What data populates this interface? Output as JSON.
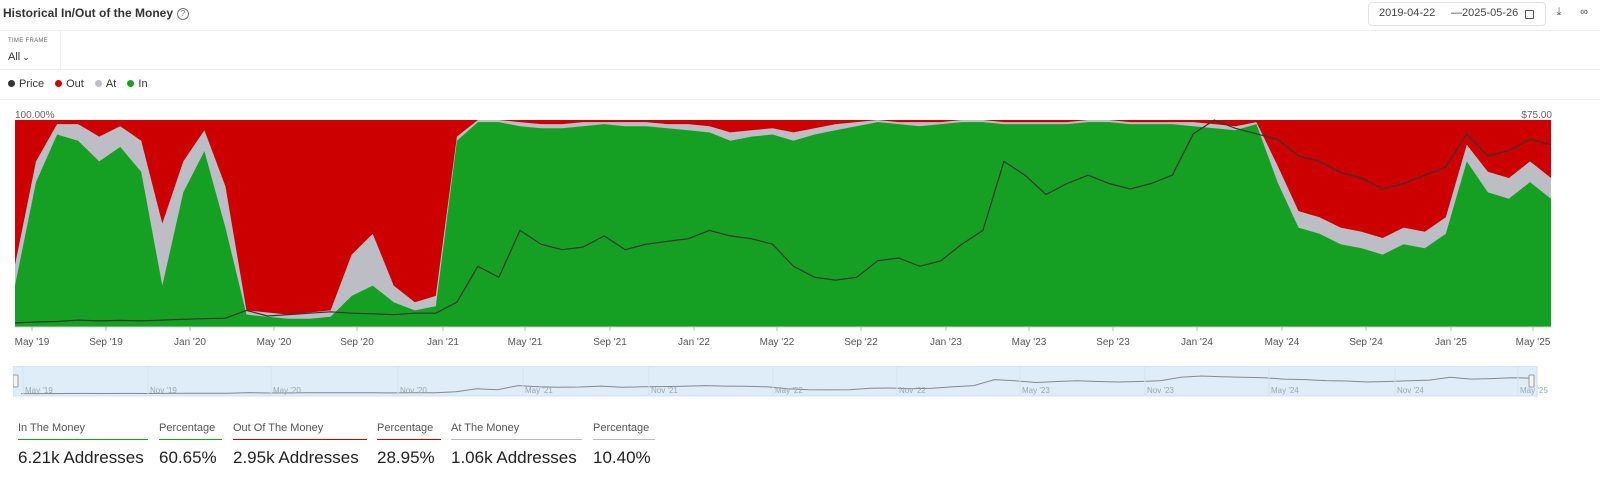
{
  "header": {
    "title": "Historical In/Out of the Money",
    "help_icon": "question-circle-icon",
    "date_from": "2019-04-22",
    "date_sep": "—",
    "date_to": "2025-05-26",
    "icons": [
      "calendar-icon",
      "download-icon",
      "link-icon"
    ]
  },
  "timeframe": {
    "label": "TIME FRAME",
    "value": "All"
  },
  "legend": [
    {
      "label": "Price",
      "color": "#333333"
    },
    {
      "label": "Out",
      "color": "#cc0000"
    },
    {
      "label": "At",
      "color": "#bdbdc5"
    },
    {
      "label": "In",
      "color": "#16a023"
    }
  ],
  "colors": {
    "in": "#16a023",
    "out": "#cc0000",
    "at": "#bdbdc5",
    "price": "#333333",
    "navigator_bg": "#dfedf9"
  },
  "chart_data": {
    "type": "area",
    "stacked_percent": true,
    "series": [
      {
        "name": "In",
        "x": [
          "2019-04",
          "2019-05",
          "2019-06",
          "2019-07",
          "2019-08",
          "2019-09",
          "2019-10",
          "2019-11",
          "2019-12",
          "2020-01",
          "2020-02",
          "2020-03",
          "2020-04",
          "2020-05",
          "2020-06",
          "2020-07",
          "2020-08",
          "2020-09",
          "2020-10",
          "2020-11",
          "2020-12",
          "2021-01",
          "2021-02",
          "2021-03",
          "2021-04",
          "2021-05",
          "2021-06",
          "2021-07",
          "2021-08",
          "2021-09",
          "2021-10",
          "2021-11",
          "2021-12",
          "2022-01",
          "2022-02",
          "2022-03",
          "2022-04",
          "2022-05",
          "2022-06",
          "2022-07",
          "2022-08",
          "2022-09",
          "2022-10",
          "2022-11",
          "2022-12",
          "2023-01",
          "2023-02",
          "2023-03",
          "2023-04",
          "2023-05",
          "2023-06",
          "2023-07",
          "2023-08",
          "2023-09",
          "2023-10",
          "2023-11",
          "2023-12",
          "2024-01",
          "2024-02",
          "2024-03",
          "2024-04",
          "2024-05",
          "2024-06",
          "2024-07",
          "2024-08",
          "2024-09",
          "2024-10",
          "2024-11",
          "2024-12",
          "2025-01",
          "2025-02",
          "2025-03",
          "2025-04",
          "2025-05"
        ],
        "values": [
          20,
          70,
          93,
          90,
          80,
          87,
          75,
          20,
          65,
          85,
          48,
          6,
          5,
          4,
          4,
          5,
          15,
          20,
          12,
          8,
          10,
          90,
          99,
          99,
          97,
          96,
          96,
          97,
          98,
          97,
          97,
          96,
          95,
          94,
          90,
          92,
          93,
          90,
          93,
          95,
          97,
          99,
          98,
          97,
          98,
          99,
          99,
          98,
          98,
          98,
          98,
          99,
          99,
          98,
          98,
          98,
          97,
          96,
          95,
          98,
          70,
          48,
          45,
          40,
          38,
          35,
          40,
          38,
          45,
          80,
          65,
          62,
          70,
          62
        ]
      },
      {
        "name": "At",
        "x": "same as In",
        "values": [
          10,
          10,
          5,
          8,
          12,
          10,
          15,
          30,
          15,
          10,
          20,
          2,
          2,
          2,
          3,
          3,
          20,
          25,
          8,
          4,
          5,
          2,
          1,
          1,
          2,
          2,
          2,
          2,
          1,
          2,
          2,
          2,
          3,
          3,
          4,
          3,
          3,
          4,
          3,
          3,
          2,
          1,
          1,
          2,
          1,
          1,
          1,
          1,
          1,
          1,
          1,
          1,
          1,
          1,
          1,
          1,
          2,
          2,
          2,
          1,
          8,
          8,
          8,
          8,
          8,
          8,
          8,
          8,
          8,
          8,
          10,
          10,
          10,
          10
        ]
      },
      {
        "name": "Out",
        "x": "same as In",
        "values": [
          70,
          20,
          2,
          2,
          8,
          3,
          10,
          50,
          20,
          5,
          32,
          92,
          93,
          94,
          93,
          92,
          65,
          55,
          80,
          88,
          85,
          8,
          0,
          0,
          1,
          2,
          2,
          1,
          1,
          1,
          1,
          2,
          2,
          3,
          6,
          5,
          4,
          6,
          4,
          2,
          1,
          0,
          1,
          1,
          1,
          0,
          0,
          1,
          1,
          1,
          1,
          0,
          0,
          1,
          1,
          1,
          1,
          2,
          3,
          1,
          22,
          44,
          47,
          52,
          54,
          57,
          52,
          54,
          47,
          12,
          25,
          28,
          20,
          28
        ]
      },
      {
        "name": "Price",
        "axis": "right",
        "x": "same as In",
        "values": [
          1.5,
          1.8,
          2,
          2.5,
          2.2,
          2.4,
          2.2,
          2.5,
          2.8,
          3,
          3.2,
          6,
          4,
          4.5,
          5,
          5.5,
          5,
          4.8,
          4.5,
          5,
          5,
          9,
          22,
          18,
          35,
          30,
          28,
          29,
          33,
          28,
          30,
          31,
          32,
          35,
          33,
          32,
          30,
          22,
          18,
          17,
          18,
          24,
          25,
          22,
          24,
          30,
          35,
          60,
          55,
          48,
          52,
          55,
          52,
          50,
          52,
          55,
          70,
          75,
          72,
          70,
          68,
          62,
          60,
          56,
          54,
          50,
          52,
          55,
          58,
          70,
          62,
          64,
          68,
          66
        ]
      }
    ],
    "yaxis_left": {
      "top_label": "100.00%",
      "range": [
        0,
        100
      ]
    },
    "yaxis_right": {
      "top_label": "$75.00",
      "range": [
        0,
        75
      ]
    },
    "x_ticks": [
      "May '19",
      "Sep '19",
      "Jan '20",
      "May '20",
      "Sep '20",
      "Jan '21",
      "May '21",
      "Sep '21",
      "Jan '22",
      "May '22",
      "Sep '22",
      "Jan '23",
      "May '23",
      "Sep '23",
      "Jan '24",
      "May '24",
      "Sep '24",
      "Jan '25",
      "May '25"
    ],
    "navigator_ticks": [
      "May '19",
      "Nov '19",
      "May '20",
      "Nov '20",
      "May '21",
      "Nov '21",
      "May '22",
      "Nov '22",
      "May '23",
      "Nov '23",
      "May '24",
      "Nov '24",
      "May '25"
    ]
  },
  "stats": [
    {
      "label": "In The Money",
      "value": "6.21k Addresses",
      "color": "#16a023"
    },
    {
      "label": "Percentage",
      "value": "60.65%",
      "color": "#16a023"
    },
    {
      "label": "Out Of The Money",
      "value": "2.95k Addresses",
      "color": "#cc0000"
    },
    {
      "label": "Percentage",
      "value": "28.95%",
      "color": "#cc0000"
    },
    {
      "label": "At The Money",
      "value": "1.06k Addresses",
      "color": "#bdbdc5"
    },
    {
      "label": "Percentage",
      "value": "10.40%",
      "color": "#bdbdc5"
    }
  ]
}
